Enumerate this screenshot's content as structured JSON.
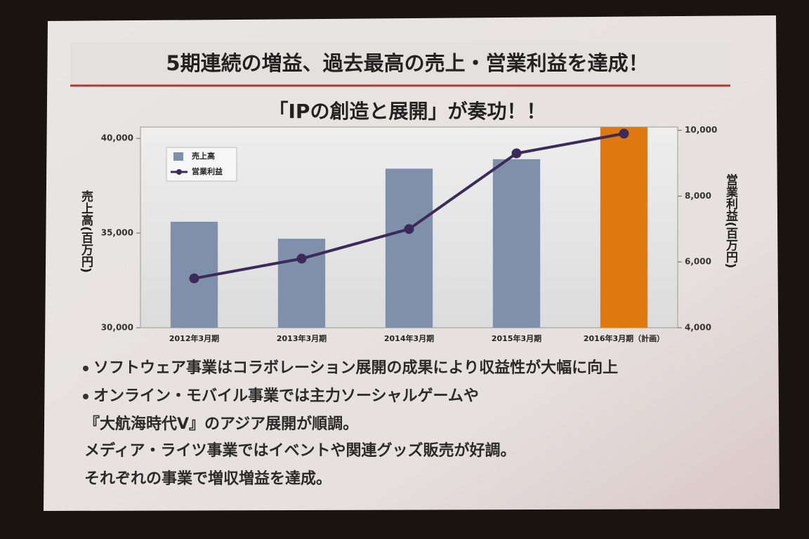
{
  "slide_title": "5期連続の増益、過去最高の売上・営業利益を達成！",
  "bullets": [
    "ソフトウェア事業はコラボレーション展開の成果により収益性が大幅に向上",
    "オンライン・モバイル事業では主力ソーシャルゲームや",
    "『大航海時代Ⅴ』のアジア展開が順調。",
    "メディア・ライツ事業ではイベントや関連グッズ販売が好調。",
    "それぞれの事業で増収増益を達成。"
  ],
  "chart_data": {
    "type": "bar_line",
    "title": "「IPの創造と展開」が奏功！！",
    "y_label": "売上高(百万円)",
    "y2_label": "営業利益(百万円)",
    "categories": [
      "2012年3月期",
      "2013年3月期",
      "2014年3月期",
      "2015年3月期",
      "2016年3月期（計画）"
    ],
    "series": [
      {
        "name": "売上高",
        "type": "bar",
        "color": "#7f90ab",
        "colors": [
          "#7f90ab",
          "#7f90ab",
          "#7f90ab",
          "#7f90ab",
          "#e07a10"
        ],
        "values": [
          35600,
          34700,
          38400,
          38900,
          40600
        ]
      },
      {
        "name": "営業利益",
        "type": "line",
        "axis": "y2",
        "color": "#3b2a5a",
        "values": [
          5500,
          6100,
          7000,
          9300,
          9900
        ]
      }
    ],
    "ylim": [
      30000,
      40600
    ],
    "yticks": [
      {
        "value": 30000,
        "label": "30,000"
      },
      {
        "value": 35000,
        "label": "35,000"
      },
      {
        "value": 40000,
        "label": "40,000"
      }
    ],
    "y2lim": [
      4000,
      10100
    ],
    "y2ticks": [
      {
        "value": 4000,
        "label": "4,000"
      },
      {
        "value": 6000,
        "label": "6,000"
      },
      {
        "value": 8000,
        "label": "8,000"
      },
      {
        "value": 10000,
        "label": "10,000"
      }
    ],
    "legend": "upper left"
  }
}
